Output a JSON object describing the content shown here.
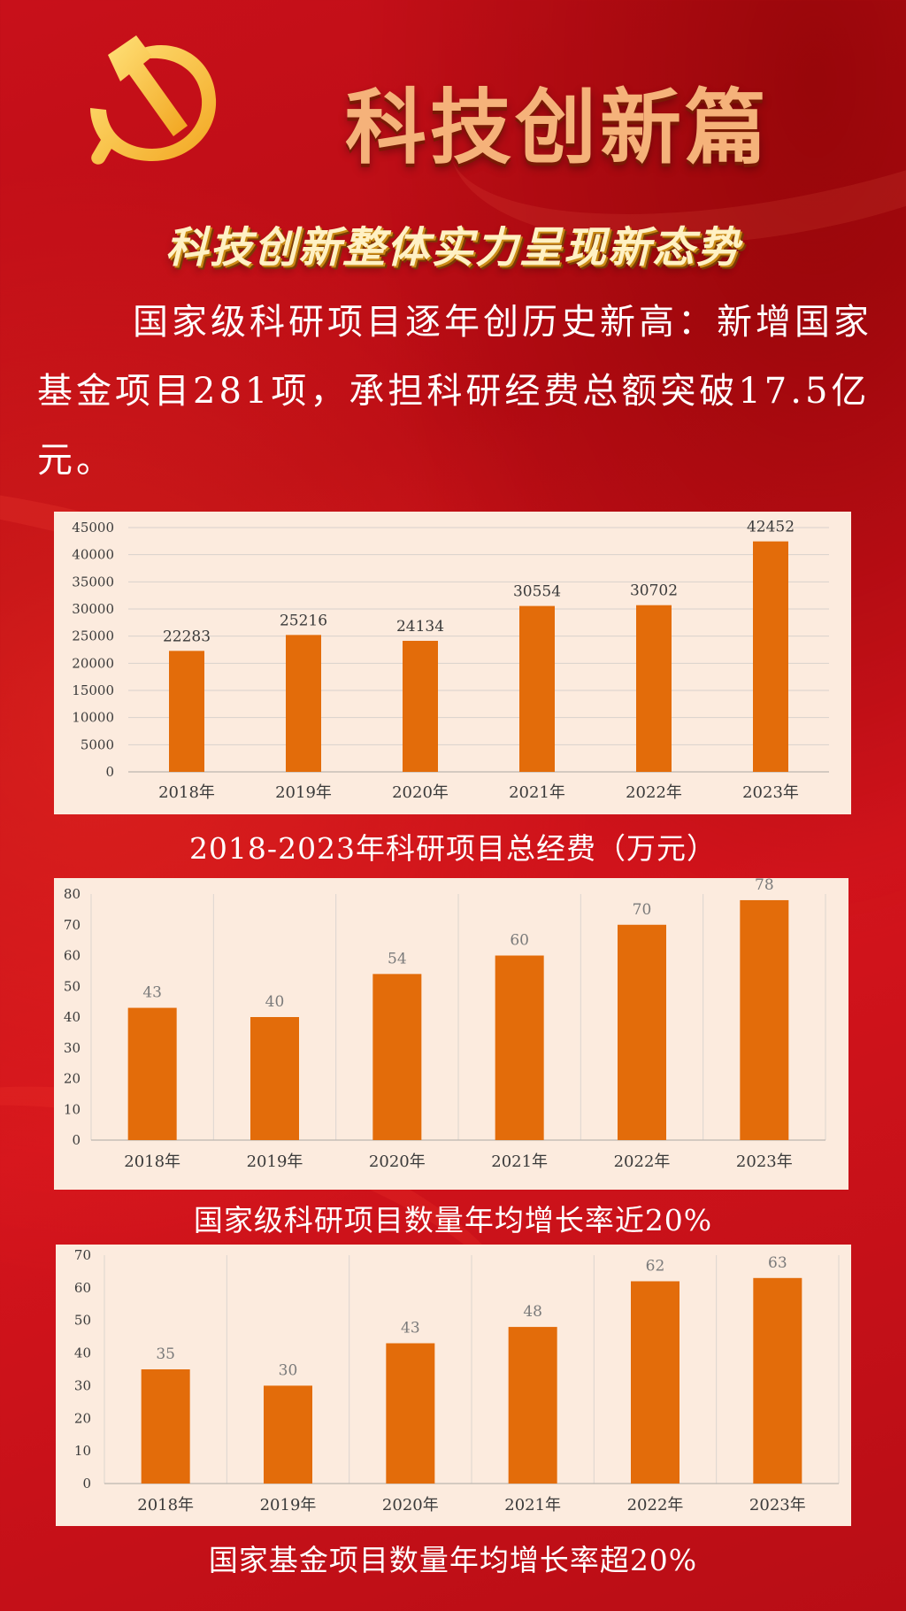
{
  "header": {
    "title": "科技创新篇",
    "subtitle": "科技创新整体实力呈现新态势",
    "emblem_icon": "hammer-sickle-icon"
  },
  "intro": {
    "text": "国家级科研项目逐年创历史新高：新增国家基金项目281项，承担科研经费总额突破17.5亿元。"
  },
  "colors": {
    "background": "#c8101a",
    "bar": "#e36c0a",
    "panel": "#fcebde",
    "title": "#f5b27a",
    "subtitle": "#fff1c4"
  },
  "chart_data": [
    {
      "type": "bar",
      "categories": [
        "2018年",
        "2019年",
        "2020年",
        "2021年",
        "2022年",
        "2023年"
      ],
      "values": [
        22283,
        25216,
        24134,
        30554,
        30702,
        42452
      ],
      "title": "2018-2023年科研项目总经费（万元）",
      "xlabel": "",
      "ylabel": "",
      "ylim": [
        0,
        45000
      ],
      "yticks": [
        0,
        5000,
        10000,
        15000,
        20000,
        25000,
        30000,
        35000,
        40000,
        45000
      ],
      "grid": "horizontal"
    },
    {
      "type": "bar",
      "categories": [
        "2018年",
        "2019年",
        "2020年",
        "2021年",
        "2022年",
        "2023年"
      ],
      "values": [
        43,
        40,
        54,
        60,
        70,
        78
      ],
      "title": "国家级科研项目数量年均增长率近20%",
      "xlabel": "",
      "ylabel": "",
      "ylim": [
        0,
        80
      ],
      "yticks": [
        0,
        10,
        20,
        30,
        40,
        50,
        60,
        70,
        80
      ],
      "grid": "vertical"
    },
    {
      "type": "bar",
      "categories": [
        "2018年",
        "2019年",
        "2020年",
        "2021年",
        "2022年",
        "2023年"
      ],
      "values": [
        35,
        30,
        43,
        48,
        62,
        63
      ],
      "title": "国家基金项目数量年均增长率超20%",
      "xlabel": "",
      "ylabel": "",
      "ylim": [
        0,
        70
      ],
      "yticks": [
        0,
        10,
        20,
        30,
        40,
        50,
        60,
        70
      ],
      "grid": "vertical"
    }
  ]
}
